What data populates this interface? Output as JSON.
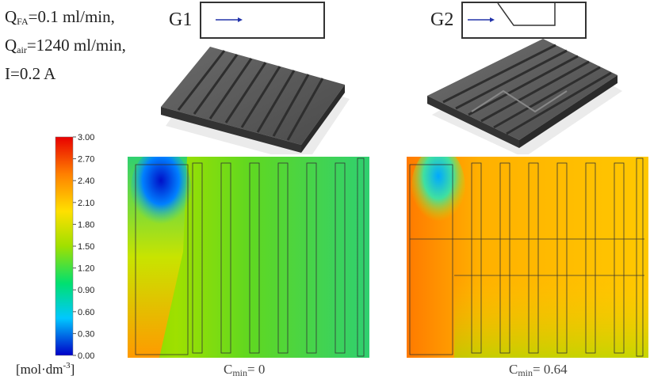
{
  "operating_conditions": {
    "line1": {
      "symbol": "Q",
      "subscript": "FA",
      "rest": "=0.1 ml/min,"
    },
    "line2": {
      "symbol": "Q",
      "subscript": "air",
      "rest": "=1240 ml/min,"
    },
    "line3": {
      "text": "I=0.2 A"
    }
  },
  "designs": [
    {
      "id": "G1",
      "label": "G1",
      "cmin_prefix": "C",
      "cmin_subscript": "min",
      "cmin_value": "= 0"
    },
    {
      "id": "G2",
      "label": "G2",
      "cmin_prefix": "C",
      "cmin_subscript": "min",
      "cmin_value": "= 0.64"
    }
  ],
  "colorbar": {
    "min": 0.0,
    "max": 3.0,
    "ticks": [
      "3.00",
      "2.70",
      "2.40",
      "2.10",
      "1.80",
      "1.50",
      "1.20",
      "0.90",
      "0.60",
      "0.30",
      "0.00"
    ],
    "unit_prefix": "[mol·dm",
    "unit_sup": "-3",
    "unit_suffix": "]",
    "colors": [
      "#0000c8",
      "#00c8ff",
      "#00e070",
      "#a0e000",
      "#ffe000",
      "#ff8000",
      "#e80000"
    ]
  }
}
